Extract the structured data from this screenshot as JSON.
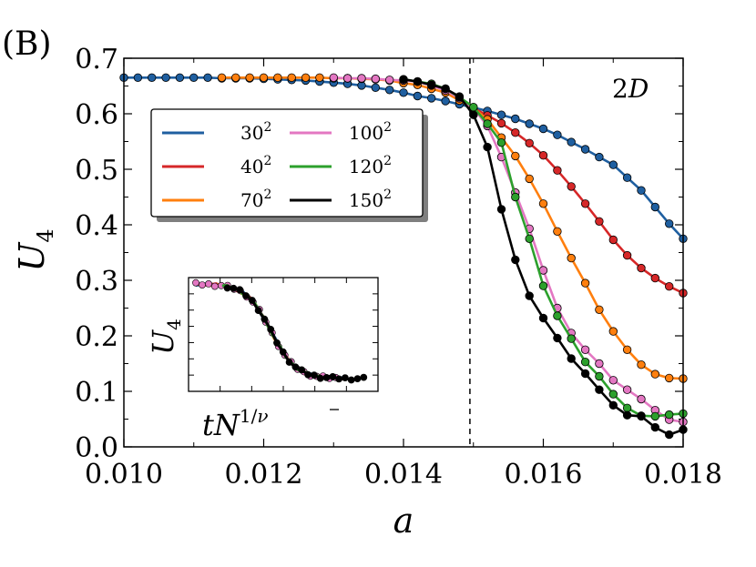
{
  "panel_label": "(B)",
  "chart_data": {
    "type": "line",
    "title": "",
    "xlabel": "a",
    "ylabel": "U4",
    "ylabel_main": "U",
    "ylabel_sub": "4",
    "xlim": [
      0.01,
      0.018
    ],
    "ylim": [
      0.0,
      0.7
    ],
    "xticks": [
      0.01,
      0.012,
      0.014,
      0.016,
      0.018
    ],
    "xtick_labels": [
      "0.010",
      "0.012",
      "0.014",
      "0.016",
      "0.018"
    ],
    "yticks": [
      0.0,
      0.1,
      0.2,
      0.3,
      0.4,
      0.5,
      0.6,
      0.7
    ],
    "ytick_labels": [
      "0.0",
      "0.1",
      "0.2",
      "0.3",
      "0.4",
      "0.5",
      "0.6",
      "0.7"
    ],
    "critical_a": 0.01495,
    "annotation": "2D",
    "annotation_main": "2",
    "annotation_italic": "D",
    "legend_position": "upper-left",
    "series": [
      {
        "name": "30²",
        "base": "30",
        "exp": "2",
        "color": "#1f5fa0",
        "x": [
          0.01,
          0.0102,
          0.0104,
          0.0106,
          0.0108,
          0.011,
          0.0112,
          0.0114,
          0.0116,
          0.0118,
          0.012,
          0.0122,
          0.0124,
          0.0126,
          0.0128,
          0.013,
          0.0132,
          0.0134,
          0.0136,
          0.0138,
          0.014,
          0.0142,
          0.0144,
          0.0146,
          0.0148,
          0.015,
          0.0152,
          0.0154,
          0.0156,
          0.0158,
          0.016,
          0.0162,
          0.0164,
          0.0166,
          0.0168,
          0.017,
          0.0172,
          0.0174,
          0.0176,
          0.0178,
          0.018
        ],
        "y": [
          0.665,
          0.665,
          0.665,
          0.665,
          0.665,
          0.665,
          0.665,
          0.664,
          0.664,
          0.664,
          0.663,
          0.662,
          0.661,
          0.66,
          0.658,
          0.656,
          0.654,
          0.651,
          0.647,
          0.643,
          0.638,
          0.632,
          0.628,
          0.623,
          0.617,
          0.611,
          0.605,
          0.598,
          0.591,
          0.582,
          0.573,
          0.562,
          0.549,
          0.536,
          0.522,
          0.508,
          0.485,
          0.462,
          0.432,
          0.402,
          0.375
        ]
      },
      {
        "name": "40²",
        "base": "40",
        "exp": "2",
        "color": "#d62728",
        "x": [
          0.015,
          0.0152,
          0.0154,
          0.0156,
          0.0158,
          0.016,
          0.0162,
          0.0164,
          0.0166,
          0.0168,
          0.017,
          0.0172,
          0.0174,
          0.0176,
          0.0178,
          0.018
        ],
        "y": [
          0.61,
          0.597,
          0.583,
          0.566,
          0.547,
          0.525,
          0.498,
          0.469,
          0.438,
          0.406,
          0.373,
          0.345,
          0.322,
          0.304,
          0.289,
          0.277
        ]
      },
      {
        "name": "70²",
        "base": "70",
        "exp": "2",
        "color": "#ff7f0e",
        "x": [
          0.0114,
          0.0116,
          0.0118,
          0.012,
          0.0122,
          0.0124,
          0.0126,
          0.0128,
          0.013,
          0.0132,
          0.0134,
          0.0136,
          0.0138,
          0.014,
          0.0142,
          0.0144,
          0.0146,
          0.0148,
          0.015,
          0.0152,
          0.0154,
          0.0156,
          0.0158,
          0.016,
          0.0162,
          0.0164,
          0.0166,
          0.0168,
          0.017,
          0.0172,
          0.0174,
          0.0176,
          0.0178,
          0.018
        ],
        "y": [
          0.665,
          0.665,
          0.665,
          0.665,
          0.665,
          0.665,
          0.665,
          0.665,
          0.664,
          0.664,
          0.663,
          0.662,
          0.66,
          0.655,
          0.652,
          0.645,
          0.638,
          0.624,
          0.61,
          0.59,
          0.557,
          0.524,
          0.483,
          0.438,
          0.388,
          0.34,
          0.295,
          0.247,
          0.208,
          0.175,
          0.148,
          0.131,
          0.124,
          0.123
        ]
      },
      {
        "name": "100²",
        "base": "100",
        "exp": "2",
        "color": "#e377c2",
        "x": [
          0.013,
          0.0132,
          0.0134,
          0.0136,
          0.0138,
          0.014,
          0.0142,
          0.0144,
          0.0146,
          0.0148,
          0.015,
          0.0152,
          0.0154,
          0.0156,
          0.0158,
          0.016,
          0.0162,
          0.0164,
          0.0166,
          0.0168,
          0.017,
          0.0172,
          0.0174,
          0.0176,
          0.0178,
          0.018
        ],
        "y": [
          0.665,
          0.664,
          0.664,
          0.663,
          0.661,
          0.66,
          0.658,
          0.651,
          0.642,
          0.628,
          0.61,
          0.578,
          0.522,
          0.458,
          0.393,
          0.318,
          0.25,
          0.205,
          0.175,
          0.15,
          0.12,
          0.103,
          0.086,
          0.066,
          0.049,
          0.045
        ]
      },
      {
        "name": "120²",
        "base": "120",
        "exp": "2",
        "color": "#2ca02c",
        "x": [
          0.014,
          0.0142,
          0.0144,
          0.0146,
          0.0148,
          0.015,
          0.0152,
          0.0154,
          0.0156,
          0.0158,
          0.016,
          0.0162,
          0.0164,
          0.0166,
          0.0168,
          0.017,
          0.0172,
          0.0174,
          0.0176,
          0.0178,
          0.018
        ],
        "y": [
          0.662,
          0.658,
          0.654,
          0.645,
          0.63,
          0.612,
          0.582,
          0.548,
          0.45,
          0.375,
          0.29,
          0.236,
          0.195,
          0.153,
          0.127,
          0.095,
          0.07,
          0.056,
          0.055,
          0.058,
          0.06
        ]
      },
      {
        "name": "150²",
        "base": "150",
        "exp": "2",
        "color": "#000000",
        "x": [
          0.014,
          0.0142,
          0.0144,
          0.0146,
          0.0148,
          0.015,
          0.0152,
          0.0154,
          0.0156,
          0.0158,
          0.016,
          0.0162,
          0.0164,
          0.0166,
          0.0168,
          0.017,
          0.0172,
          0.0174,
          0.0176,
          0.0178,
          0.018
        ],
        "y": [
          0.662,
          0.658,
          0.652,
          0.645,
          0.631,
          0.598,
          0.54,
          0.428,
          0.337,
          0.272,
          0.232,
          0.196,
          0.159,
          0.132,
          0.103,
          0.075,
          0.057,
          0.055,
          0.035,
          0.022,
          0.031
        ]
      }
    ]
  },
  "inset": {
    "xlabel": "tN^(1/ν̄)",
    "xlabel_base": "tN",
    "xlabel_exp": "1/",
    "xlabel_exp_nu": "ν",
    "ylabel": "U4",
    "ylabel_main": "U",
    "ylabel_sub": "4",
    "note": "data collapse of all system sizes (inset axes unlabeled)"
  }
}
